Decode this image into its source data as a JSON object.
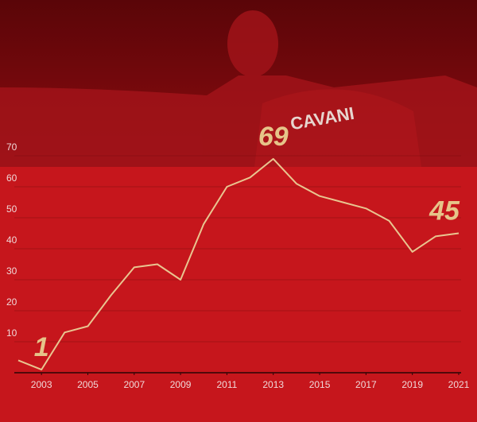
{
  "chart_data": {
    "type": "line",
    "x": [
      2002,
      2003,
      2004,
      2005,
      2006,
      2007,
      2008,
      2009,
      2010,
      2011,
      2012,
      2013,
      2014,
      2015,
      2016,
      2017,
      2018,
      2019,
      2020,
      2021
    ],
    "series": [
      {
        "color": "#e9c590",
        "values": [
          4,
          1,
          13,
          15,
          25,
          34,
          35,
          30,
          48,
          60,
          63,
          69,
          61,
          57,
          55,
          53,
          49,
          39,
          44,
          45
        ]
      }
    ],
    "xlim": [
      2002,
      2021
    ],
    "xticks": [
      2003,
      2005,
      2007,
      2009,
      2011,
      2013,
      2015,
      2017,
      2019,
      2021
    ],
    "ylim": [
      0,
      70
    ],
    "yticks": [
      10,
      20,
      30,
      40,
      50,
      60,
      70
    ],
    "grid": true,
    "labeled_points": [
      1,
      11,
      19
    ]
  }
}
